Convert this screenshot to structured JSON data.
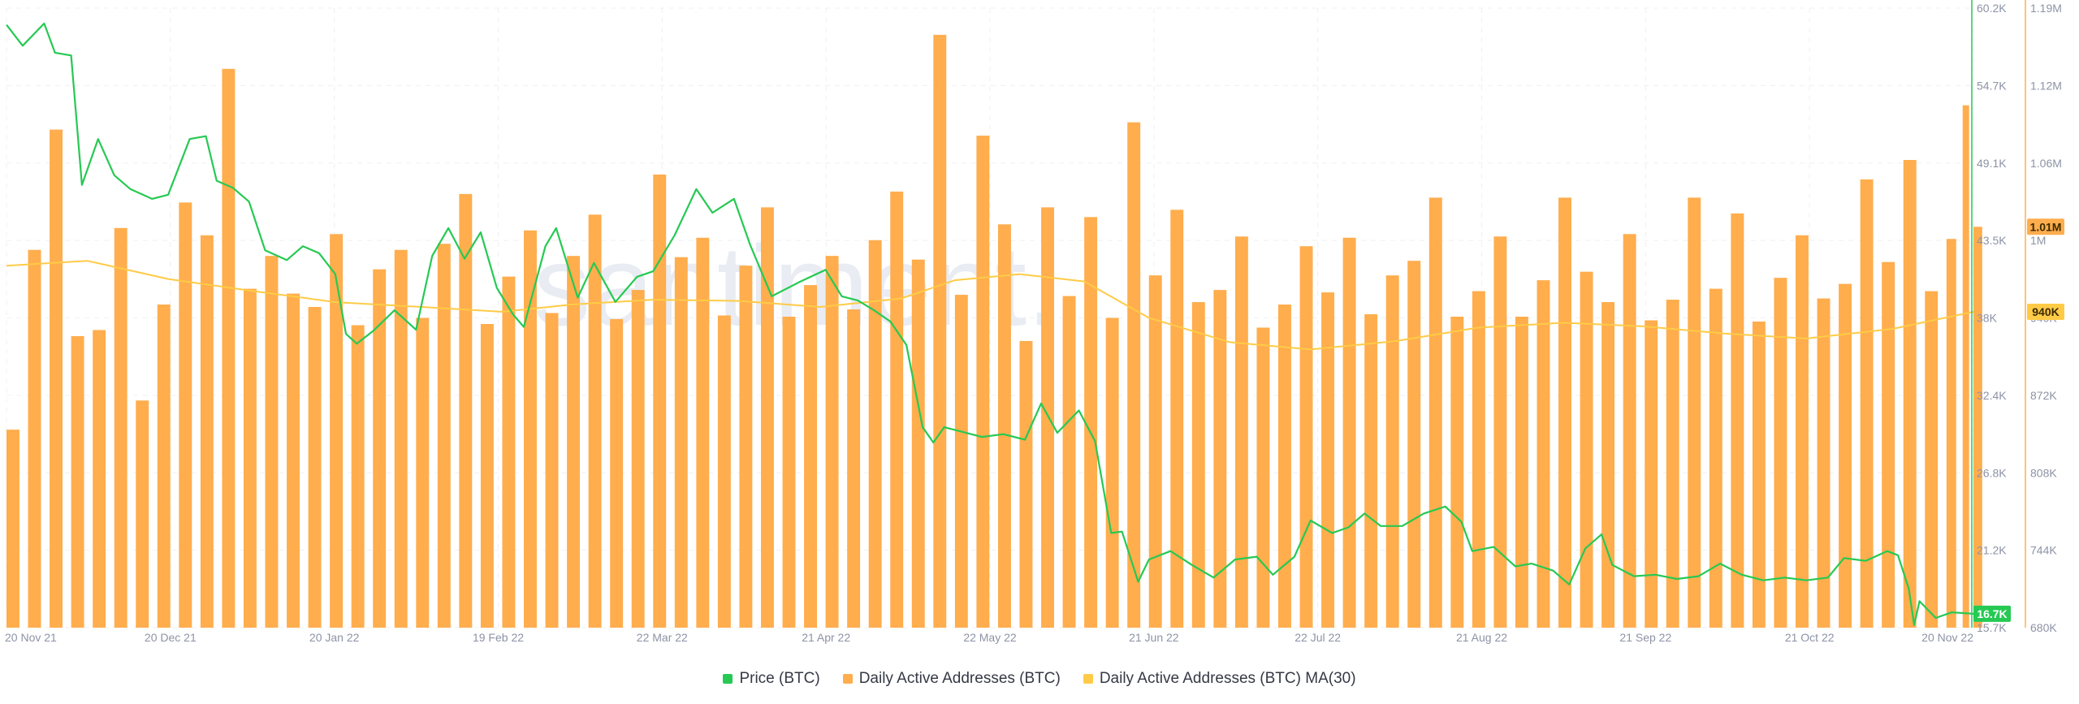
{
  "watermark": "santiment.",
  "legend": [
    {
      "label": "Price (BTC)",
      "color": "#26c953"
    },
    {
      "label": "Daily Active Addresses (BTC)",
      "color": "#ffad4d"
    },
    {
      "label": "Daily Active Addresses (BTC) MA(30)",
      "color": "#ffcb47"
    }
  ],
  "chart_data": {
    "type": "bar",
    "x_ticks": [
      "20 Nov 21",
      "20 Dec 21",
      "20 Jan 22",
      "19 Feb 22",
      "22 Mar 22",
      "21 Apr 22",
      "22 May 22",
      "21 Jun 22",
      "22 Jul 22",
      "21 Aug 22",
      "21 Sep 22",
      "21 Oct 22",
      "20 Nov 22"
    ],
    "x_range": [
      "2021-11-20",
      "2022-11-20"
    ],
    "price_axis": {
      "ticks": [
        "60.2K",
        "54.7K",
        "49.1K",
        "43.5K",
        "38K",
        "32.4K",
        "26.8K",
        "21.2K",
        "15.7K"
      ],
      "ylim": [
        15700,
        60200
      ],
      "current_label": "16.7K",
      "current_value": 16700,
      "color": "#26c953"
    },
    "addresses_axis": {
      "ticks": [
        "1.19M",
        "1.12M",
        "1.06M",
        "1M",
        "940K",
        "872K",
        "808K",
        "744K",
        "680K"
      ],
      "ylim": [
        680000,
        1190000
      ],
      "current_label": "1.01M",
      "current_value": 1010000,
      "ma_label": "940K",
      "ma_value": 940000,
      "color": "#ffad4d"
    },
    "series": [
      {
        "name": "Price (BTC)",
        "type": "line",
        "color": "#26c953",
        "points": [
          [
            "2021-11-20",
            59000
          ],
          [
            "2021-11-23",
            57500
          ],
          [
            "2021-11-27",
            59100
          ],
          [
            "2021-11-29",
            57000
          ],
          [
            "2021-12-02",
            56800
          ],
          [
            "2021-12-04",
            47500
          ],
          [
            "2021-12-07",
            50800
          ],
          [
            "2021-12-10",
            48200
          ],
          [
            "2021-12-13",
            47200
          ],
          [
            "2021-12-17",
            46500
          ],
          [
            "2021-12-20",
            46800
          ],
          [
            "2021-12-24",
            50800
          ],
          [
            "2021-12-27",
            51000
          ],
          [
            "2021-12-29",
            47800
          ],
          [
            "2022-01-01",
            47300
          ],
          [
            "2022-01-04",
            46300
          ],
          [
            "2022-01-07",
            42800
          ],
          [
            "2022-01-11",
            42100
          ],
          [
            "2022-01-14",
            43100
          ],
          [
            "2022-01-17",
            42600
          ],
          [
            "2022-01-20",
            41100
          ],
          [
            "2022-01-22",
            36800
          ],
          [
            "2022-01-24",
            36100
          ],
          [
            "2022-01-27",
            37000
          ],
          [
            "2022-01-31",
            38500
          ],
          [
            "2022-02-04",
            37100
          ],
          [
            "2022-02-07",
            42400
          ],
          [
            "2022-02-10",
            44400
          ],
          [
            "2022-02-13",
            42200
          ],
          [
            "2022-02-16",
            44100
          ],
          [
            "2022-02-19",
            40100
          ],
          [
            "2022-02-22",
            38200
          ],
          [
            "2022-02-24",
            37300
          ],
          [
            "2022-02-28",
            43100
          ],
          [
            "2022-03-02",
            44400
          ],
          [
            "2022-03-06",
            39400
          ],
          [
            "2022-03-09",
            41900
          ],
          [
            "2022-03-13",
            39100
          ],
          [
            "2022-03-17",
            40900
          ],
          [
            "2022-03-20",
            41300
          ],
          [
            "2022-03-24",
            43900
          ],
          [
            "2022-03-28",
            47200
          ],
          [
            "2022-03-31",
            45500
          ],
          [
            "2022-04-04",
            46500
          ],
          [
            "2022-04-07",
            43200
          ],
          [
            "2022-04-11",
            39500
          ],
          [
            "2022-04-16",
            40500
          ],
          [
            "2022-04-21",
            41400
          ],
          [
            "2022-04-24",
            39500
          ],
          [
            "2022-04-27",
            39200
          ],
          [
            "2022-04-30",
            38500
          ],
          [
            "2022-05-03",
            37700
          ],
          [
            "2022-05-06",
            36000
          ],
          [
            "2022-05-09",
            30100
          ],
          [
            "2022-05-11",
            29000
          ],
          [
            "2022-05-13",
            30100
          ],
          [
            "2022-05-16",
            29800
          ],
          [
            "2022-05-20",
            29400
          ],
          [
            "2022-05-24",
            29600
          ],
          [
            "2022-05-28",
            29200
          ],
          [
            "2022-05-31",
            31800
          ],
          [
            "2022-06-03",
            29700
          ],
          [
            "2022-06-07",
            31300
          ],
          [
            "2022-06-10",
            29100
          ],
          [
            "2022-06-13",
            22500
          ],
          [
            "2022-06-15",
            22600
          ],
          [
            "2022-06-18",
            19000
          ],
          [
            "2022-06-20",
            20600
          ],
          [
            "2022-06-24",
            21200
          ],
          [
            "2022-06-28",
            20200
          ],
          [
            "2022-07-02",
            19300
          ],
          [
            "2022-07-06",
            20600
          ],
          [
            "2022-07-10",
            20800
          ],
          [
            "2022-07-13",
            19500
          ],
          [
            "2022-07-17",
            20800
          ],
          [
            "2022-07-20",
            23400
          ],
          [
            "2022-07-24",
            22500
          ],
          [
            "2022-07-27",
            22900
          ],
          [
            "2022-07-30",
            23900
          ],
          [
            "2022-08-02",
            23000
          ],
          [
            "2022-08-06",
            23000
          ],
          [
            "2022-08-10",
            23900
          ],
          [
            "2022-08-14",
            24400
          ],
          [
            "2022-08-17",
            23300
          ],
          [
            "2022-08-19",
            21200
          ],
          [
            "2022-08-23",
            21500
          ],
          [
            "2022-08-27",
            20100
          ],
          [
            "2022-08-30",
            20300
          ],
          [
            "2022-09-03",
            19800
          ],
          [
            "2022-09-06",
            18800
          ],
          [
            "2022-09-09",
            21400
          ],
          [
            "2022-09-12",
            22400
          ],
          [
            "2022-09-14",
            20200
          ],
          [
            "2022-09-18",
            19400
          ],
          [
            "2022-09-22",
            19500
          ],
          [
            "2022-09-26",
            19200
          ],
          [
            "2022-09-30",
            19400
          ],
          [
            "2022-10-04",
            20300
          ],
          [
            "2022-10-08",
            19500
          ],
          [
            "2022-10-12",
            19100
          ],
          [
            "2022-10-16",
            19300
          ],
          [
            "2022-10-20",
            19100
          ],
          [
            "2022-10-24",
            19300
          ],
          [
            "2022-10-27",
            20700
          ],
          [
            "2022-10-31",
            20500
          ],
          [
            "2022-11-04",
            21200
          ],
          [
            "2022-11-06",
            20900
          ],
          [
            "2022-11-08",
            18500
          ],
          [
            "2022-11-09",
            15900
          ],
          [
            "2022-11-10",
            17600
          ],
          [
            "2022-11-13",
            16400
          ],
          [
            "2022-11-16",
            16800
          ],
          [
            "2022-11-20",
            16700
          ]
        ]
      },
      {
        "name": "Daily Active Addresses (BTC)",
        "type": "bar",
        "color": "#ffad4d",
        "points": [
          [
            "2021-11-20",
            843000
          ],
          [
            "2021-11-24",
            991000
          ],
          [
            "2021-11-28",
            1090000
          ],
          [
            "2021-12-02",
            920000
          ],
          [
            "2021-12-06",
            925000
          ],
          [
            "2021-12-10",
            1009000
          ],
          [
            "2021-12-14",
            867000
          ],
          [
            "2021-12-18",
            946000
          ],
          [
            "2021-12-22",
            1030000
          ],
          [
            "2021-12-26",
            1003000
          ],
          [
            "2021-12-30",
            1140000
          ],
          [
            "2022-01-03",
            959000
          ],
          [
            "2022-01-07",
            986000
          ],
          [
            "2022-01-11",
            955000
          ],
          [
            "2022-01-15",
            944000
          ],
          [
            "2022-01-19",
            1004000
          ],
          [
            "2022-01-23",
            929000
          ],
          [
            "2022-01-27",
            975000
          ],
          [
            "2022-01-31",
            991000
          ],
          [
            "2022-02-04",
            935000
          ],
          [
            "2022-02-08",
            996000
          ],
          [
            "2022-02-12",
            1037000
          ],
          [
            "2022-02-16",
            930000
          ],
          [
            "2022-02-20",
            969000
          ],
          [
            "2022-02-24",
            1007000
          ],
          [
            "2022-02-28",
            939000
          ],
          [
            "2022-03-04",
            986000
          ],
          [
            "2022-03-08",
            1020000
          ],
          [
            "2022-03-12",
            934000
          ],
          [
            "2022-03-16",
            958000
          ],
          [
            "2022-03-20",
            1053000
          ],
          [
            "2022-03-24",
            985000
          ],
          [
            "2022-03-28",
            1001000
          ],
          [
            "2022-04-01",
            937000
          ],
          [
            "2022-04-05",
            978000
          ],
          [
            "2022-04-09",
            1026000
          ],
          [
            "2022-04-13",
            936000
          ],
          [
            "2022-04-17",
            962000
          ],
          [
            "2022-04-21",
            986000
          ],
          [
            "2022-04-25",
            942000
          ],
          [
            "2022-04-29",
            999000
          ],
          [
            "2022-05-03",
            1039000
          ],
          [
            "2022-05-07",
            983000
          ],
          [
            "2022-05-11",
            1168000
          ],
          [
            "2022-05-15",
            954000
          ],
          [
            "2022-05-19",
            1085000
          ],
          [
            "2022-05-23",
            1012000
          ],
          [
            "2022-05-27",
            916000
          ],
          [
            "2022-05-31",
            1026000
          ],
          [
            "2022-06-04",
            953000
          ],
          [
            "2022-06-08",
            1018000
          ],
          [
            "2022-06-12",
            935000
          ],
          [
            "2022-06-16",
            1096000
          ],
          [
            "2022-06-20",
            970000
          ],
          [
            "2022-06-24",
            1024000
          ],
          [
            "2022-06-28",
            948000
          ],
          [
            "2022-07-02",
            958000
          ],
          [
            "2022-07-06",
            1002000
          ],
          [
            "2022-07-10",
            927000
          ],
          [
            "2022-07-14",
            946000
          ],
          [
            "2022-07-18",
            994000
          ],
          [
            "2022-07-22",
            956000
          ],
          [
            "2022-07-26",
            1001000
          ],
          [
            "2022-07-30",
            938000
          ],
          [
            "2022-08-03",
            970000
          ],
          [
            "2022-08-07",
            982000
          ],
          [
            "2022-08-11",
            1034000
          ],
          [
            "2022-08-15",
            936000
          ],
          [
            "2022-08-19",
            957000
          ],
          [
            "2022-08-23",
            1002000
          ],
          [
            "2022-08-27",
            936000
          ],
          [
            "2022-08-31",
            966000
          ],
          [
            "2022-09-04",
            1034000
          ],
          [
            "2022-09-08",
            973000
          ],
          [
            "2022-09-12",
            948000
          ],
          [
            "2022-09-16",
            1004000
          ],
          [
            "2022-09-20",
            933000
          ],
          [
            "2022-09-24",
            950000
          ],
          [
            "2022-09-28",
            1034000
          ],
          [
            "2022-10-02",
            959000
          ],
          [
            "2022-10-06",
            1021000
          ],
          [
            "2022-10-10",
            932000
          ],
          [
            "2022-10-14",
            968000
          ],
          [
            "2022-10-18",
            1003000
          ],
          [
            "2022-10-22",
            951000
          ],
          [
            "2022-10-26",
            963000
          ],
          [
            "2022-10-30",
            1049000
          ],
          [
            "2022-11-03",
            981000
          ],
          [
            "2022-11-07",
            1065000
          ],
          [
            "2022-11-11",
            957000
          ],
          [
            "2022-11-15",
            1000000
          ],
          [
            "2022-11-18",
            1110000
          ],
          [
            "2022-11-20",
            1010000
          ]
        ]
      },
      {
        "name": "Daily Active Addresses (BTC) MA(30)",
        "type": "line",
        "color": "#ffcb47",
        "points": [
          [
            "2021-11-20",
            978000
          ],
          [
            "2021-12-05",
            982000
          ],
          [
            "2021-12-20",
            967000
          ],
          [
            "2022-01-05",
            957000
          ],
          [
            "2022-01-20",
            948000
          ],
          [
            "2022-02-05",
            944000
          ],
          [
            "2022-02-20",
            940000
          ],
          [
            "2022-03-05",
            946000
          ],
          [
            "2022-03-20",
            950000
          ],
          [
            "2022-04-05",
            949000
          ],
          [
            "2022-04-20",
            944000
          ],
          [
            "2022-05-05",
            951000
          ],
          [
            "2022-05-15",
            966000
          ],
          [
            "2022-05-27",
            971000
          ],
          [
            "2022-06-08",
            965000
          ],
          [
            "2022-06-20",
            935000
          ],
          [
            "2022-07-05",
            915000
          ],
          [
            "2022-07-20",
            909000
          ],
          [
            "2022-08-05",
            916000
          ],
          [
            "2022-08-20",
            927000
          ],
          [
            "2022-09-05",
            931000
          ],
          [
            "2022-09-20",
            928000
          ],
          [
            "2022-10-05",
            922000
          ],
          [
            "2022-10-20",
            918000
          ],
          [
            "2022-11-05",
            926000
          ],
          [
            "2022-11-20",
            940000
          ]
        ]
      }
    ]
  }
}
